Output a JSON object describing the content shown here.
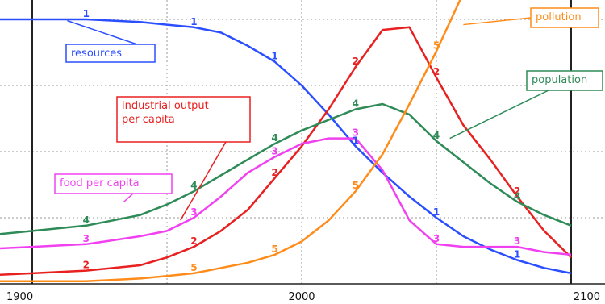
{
  "chart_data": {
    "type": "line",
    "x_range": [
      1900,
      2100
    ],
    "x_ticks": [
      1900,
      2000,
      2100
    ],
    "ylim": [
      0,
      1
    ],
    "grid": true,
    "series": [
      {
        "name": "resources",
        "marker": "1",
        "color": "#2b4fff",
        "x": [
          1900,
          1920,
          1940,
          1950,
          1960,
          1970,
          1980,
          1990,
          2000,
          2010,
          2020,
          2030,
          2040,
          2050,
          2060,
          2070,
          2080,
          2090,
          2100
        ],
        "values": [
          1.0,
          1.0,
          0.99,
          0.98,
          0.97,
          0.95,
          0.9,
          0.84,
          0.75,
          0.64,
          0.52,
          0.42,
          0.33,
          0.25,
          0.18,
          0.13,
          0.09,
          0.06,
          0.04
        ]
      },
      {
        "name": "industrial output per capita",
        "marker": "2",
        "color": "#e82020",
        "x": [
          1900,
          1920,
          1940,
          1950,
          1960,
          1970,
          1980,
          1990,
          2000,
          2010,
          2020,
          2030,
          2040,
          2050,
          2060,
          2070,
          2080,
          2090,
          2100
        ],
        "values": [
          0.04,
          0.05,
          0.07,
          0.1,
          0.14,
          0.2,
          0.28,
          0.4,
          0.52,
          0.66,
          0.82,
          0.96,
          0.97,
          0.78,
          0.6,
          0.47,
          0.33,
          0.2,
          0.1
        ]
      },
      {
        "name": "food per capita",
        "marker": "3",
        "color": "#f040f0",
        "x": [
          1900,
          1920,
          1940,
          1950,
          1960,
          1970,
          1980,
          1990,
          2000,
          2010,
          2020,
          2030,
          2040,
          2050,
          2060,
          2070,
          2080,
          2090,
          2100
        ],
        "values": [
          0.14,
          0.15,
          0.18,
          0.2,
          0.25,
          0.33,
          0.42,
          0.48,
          0.53,
          0.55,
          0.55,
          0.43,
          0.24,
          0.15,
          0.14,
          0.14,
          0.14,
          0.12,
          0.11
        ]
      },
      {
        "name": "population",
        "marker": "4",
        "color": "#2e8b57",
        "x": [
          1900,
          1920,
          1940,
          1950,
          1960,
          1970,
          1980,
          1990,
          2000,
          2010,
          2020,
          2030,
          2040,
          2050,
          2060,
          2070,
          2080,
          2090,
          2100
        ],
        "values": [
          0.2,
          0.22,
          0.26,
          0.3,
          0.35,
          0.41,
          0.47,
          0.53,
          0.58,
          0.62,
          0.66,
          0.68,
          0.64,
          0.54,
          0.46,
          0.38,
          0.31,
          0.26,
          0.22
        ]
      },
      {
        "name": "pollution",
        "marker": "5",
        "color": "#ff8c1a",
        "x": [
          1900,
          1920,
          1940,
          1950,
          1960,
          1970,
          1980,
          1990,
          2000,
          2010,
          2020,
          2030,
          2040,
          2050,
          2060
        ],
        "values": [
          0.01,
          0.01,
          0.02,
          0.03,
          0.04,
          0.06,
          0.08,
          0.11,
          0.16,
          0.24,
          0.35,
          0.49,
          0.68,
          0.88,
          1.1
        ]
      }
    ]
  }
}
